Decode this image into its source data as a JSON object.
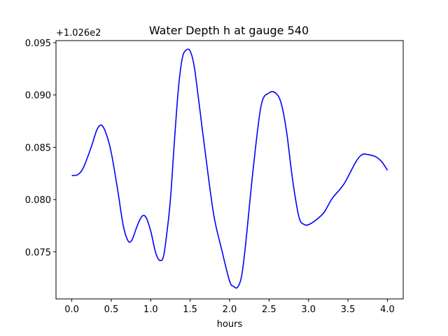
{
  "chart_data": {
    "type": "line",
    "title": "Water Depth h at gauge 540",
    "xlabel": "hours",
    "ylabel": "",
    "y_offset_text": "+1.026e2",
    "xlim": [
      -0.2,
      4.2
    ],
    "ylim": [
      0.0705,
      0.0952
    ],
    "x_ticks": [
      0.0,
      0.5,
      1.0,
      1.5,
      2.0,
      2.5,
      3.0,
      3.5,
      4.0
    ],
    "x_tick_labels": [
      "0.0",
      "0.5",
      "1.0",
      "1.5",
      "2.0",
      "2.5",
      "3.0",
      "3.5",
      "4.0"
    ],
    "y_ticks": [
      0.075,
      0.08,
      0.085,
      0.09,
      0.095
    ],
    "y_tick_labels": [
      "0.075",
      "0.080",
      "0.085",
      "0.090",
      "0.095"
    ],
    "grid": false,
    "series": [
      {
        "color": "#0000ff",
        "x": [
          0.0,
          0.08,
          0.15,
          0.25,
          0.32,
          0.38,
          0.44,
          0.5,
          0.58,
          0.65,
          0.71,
          0.76,
          0.83,
          0.89,
          0.94,
          1.0,
          1.06,
          1.11,
          1.16,
          1.2,
          1.25,
          1.3,
          1.35,
          1.4,
          1.45,
          1.5,
          1.55,
          1.6,
          1.7,
          1.8,
          1.9,
          2.0,
          2.05,
          2.1,
          2.15,
          2.2,
          2.3,
          2.4,
          2.5,
          2.58,
          2.65,
          2.72,
          2.8,
          2.88,
          2.95,
          3.0,
          3.05,
          3.12,
          3.2,
          3.3,
          3.45,
          3.6,
          3.68,
          3.75,
          3.85,
          3.93,
          4.0
        ],
        "y": [
          0.0823,
          0.0824,
          0.0831,
          0.0851,
          0.0867,
          0.0871,
          0.0862,
          0.0845,
          0.081,
          0.0776,
          0.0761,
          0.0761,
          0.0775,
          0.0784,
          0.0783,
          0.077,
          0.075,
          0.0742,
          0.0745,
          0.0765,
          0.08,
          0.0855,
          0.0905,
          0.0935,
          0.0943,
          0.0942,
          0.0928,
          0.09,
          0.084,
          0.0785,
          0.0752,
          0.0722,
          0.0717,
          0.0716,
          0.0726,
          0.0755,
          0.083,
          0.089,
          0.0902,
          0.0902,
          0.0893,
          0.0866,
          0.0818,
          0.0783,
          0.0776,
          0.0776,
          0.0778,
          0.0782,
          0.0788,
          0.0801,
          0.0815,
          0.0836,
          0.0843,
          0.0843,
          0.0841,
          0.0836,
          0.0828
        ]
      }
    ]
  }
}
